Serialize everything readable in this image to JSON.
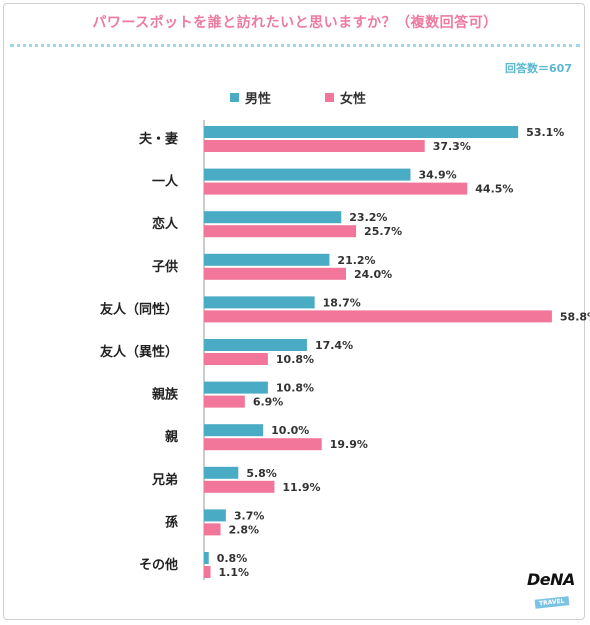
{
  "title": "パワースポットを誰と訪れたいと思いますか？（複数回答可）",
  "total_label": "回答数＝607",
  "logo": {
    "name": "DeNA",
    "tag": "TRAVEL"
  },
  "colors": {
    "male": "#4aabc4",
    "female": "#f27699",
    "title": "#ee7aa0"
  },
  "chart_data": {
    "type": "bar",
    "orientation": "horizontal",
    "title": "パワースポットを誰と訪れたいと思いますか？（複数回答可）",
    "categories": [
      "夫・妻",
      "一人",
      "恋人",
      "子供",
      "友人（同性）",
      "友人（異性）",
      "親族",
      "親",
      "兄弟",
      "孫",
      "その他"
    ],
    "series": [
      {
        "name": "男性",
        "values": [
          53.1,
          34.9,
          23.2,
          21.2,
          18.7,
          17.4,
          10.8,
          10.0,
          5.8,
          3.7,
          0.8
        ]
      },
      {
        "name": "女性",
        "values": [
          37.3,
          44.5,
          25.7,
          24.0,
          58.8,
          10.8,
          6.9,
          19.9,
          11.9,
          2.8,
          1.1
        ]
      }
    ],
    "value_suffix": "%",
    "xlim": [
      0,
      60
    ],
    "legend": "top",
    "grid": false
  }
}
